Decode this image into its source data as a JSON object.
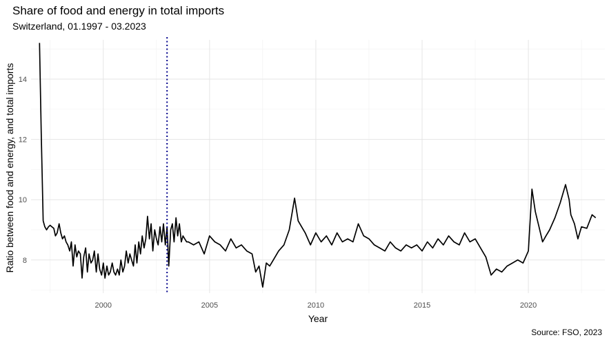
{
  "chart_data": {
    "type": "line",
    "title": "Share of food and energy in total imports",
    "subtitle": "Switzerland, 01.1997 - 03.2023",
    "caption": "Source: FSO, 2023",
    "xlabel": "Year",
    "ylabel": "Ratio between food and energy, and total imports",
    "xlim": [
      1996.6,
      2023.6
    ],
    "ylim": [
      6.9,
      15.3
    ],
    "x_ticks": [
      2000,
      2005,
      2010,
      2015,
      2020
    ],
    "y_ticks": [
      8,
      10,
      12,
      14
    ],
    "grid": true,
    "vline": {
      "x": 2003.0,
      "style": "dotted",
      "color": "#00008b"
    },
    "line_color": "#000000",
    "series": [
      {
        "x": [
          1997.0,
          1997.08,
          1997.17,
          1997.25,
          1997.33,
          1997.42,
          1997.5,
          1997.58,
          1997.67,
          1997.75,
          1997.83,
          1997.92,
          1998.0,
          1998.08,
          1998.17,
          1998.25,
          1998.33,
          1998.42,
          1998.5,
          1998.58,
          1998.67,
          1998.75,
          1998.83,
          1998.92,
          1999.0,
          1999.08,
          1999.17,
          1999.25,
          1999.33,
          1999.42,
          1999.5,
          1999.58,
          1999.67,
          1999.75,
          1999.83,
          1999.92,
          2000.0,
          2000.08,
          2000.17,
          2000.25,
          2000.33,
          2000.42,
          2000.5,
          2000.58,
          2000.67,
          2000.75,
          2000.83,
          2000.92,
          2001.0,
          2001.08,
          2001.17,
          2001.25,
          2001.33,
          2001.42,
          2001.5,
          2001.58,
          2001.67,
          2001.75,
          2001.83,
          2001.92,
          2002.0,
          2002.08,
          2002.17,
          2002.25,
          2002.33,
          2002.42,
          2002.5,
          2002.58,
          2002.67,
          2002.75,
          2002.83,
          2002.92,
          2003.0,
          2003.08,
          2003.17,
          2003.25,
          2003.33,
          2003.42,
          2003.5,
          2003.58,
          2003.67,
          2003.75,
          2003.83,
          2003.92,
          2004.0,
          2004.25,
          2004.5,
          2004.75,
          2005.0,
          2005.25,
          2005.5,
          2005.75,
          2006.0,
          2006.25,
          2006.5,
          2006.75,
          2007.0,
          2007.17,
          2007.33,
          2007.5,
          2007.67,
          2007.83,
          2008.0,
          2008.25,
          2008.5,
          2008.75,
          2009.0,
          2009.17,
          2009.33,
          2009.5,
          2009.75,
          2010.0,
          2010.25,
          2010.5,
          2010.75,
          2011.0,
          2011.25,
          2011.5,
          2011.75,
          2012.0,
          2012.25,
          2012.5,
          2012.75,
          2013.0,
          2013.25,
          2013.5,
          2013.75,
          2014.0,
          2014.25,
          2014.5,
          2014.75,
          2015.0,
          2015.25,
          2015.5,
          2015.75,
          2016.0,
          2016.25,
          2016.5,
          2016.75,
          2017.0,
          2017.25,
          2017.5,
          2017.75,
          2018.0,
          2018.25,
          2018.5,
          2018.75,
          2019.0,
          2019.25,
          2019.5,
          2019.75,
          2020.0,
          2020.17,
          2020.33,
          2020.5,
          2020.67,
          2020.83,
          2021.0,
          2021.25,
          2021.5,
          2021.75,
          2021.92,
          2022.0,
          2022.17,
          2022.33,
          2022.5,
          2022.75,
          2023.0,
          2023.17
        ],
        "y": [
          15.2,
          12.2,
          9.3,
          9.1,
          9.0,
          9.1,
          9.15,
          9.1,
          9.05,
          8.8,
          8.9,
          9.2,
          8.9,
          8.7,
          8.8,
          8.6,
          8.5,
          8.3,
          8.6,
          7.8,
          8.5,
          8.1,
          8.3,
          8.2,
          7.4,
          8.1,
          8.4,
          7.6,
          8.2,
          7.9,
          8.0,
          8.3,
          7.6,
          8.2,
          7.7,
          7.5,
          7.9,
          7.4,
          7.8,
          7.5,
          7.6,
          7.9,
          7.6,
          7.5,
          7.7,
          7.5,
          8.0,
          7.6,
          7.8,
          8.3,
          7.9,
          8.2,
          8.0,
          7.8,
          8.5,
          7.9,
          8.6,
          8.2,
          8.8,
          8.4,
          8.7,
          9.45,
          8.7,
          9.2,
          8.3,
          9.0,
          8.7,
          8.5,
          9.1,
          8.6,
          9.2,
          8.5,
          9.1,
          7.8,
          9.0,
          9.2,
          8.6,
          9.4,
          8.8,
          9.2,
          8.6,
          8.8,
          8.7,
          8.6,
          8.6,
          8.5,
          8.6,
          8.2,
          8.8,
          8.6,
          8.5,
          8.3,
          8.7,
          8.4,
          8.5,
          8.3,
          8.2,
          7.6,
          7.8,
          7.1,
          7.9,
          7.8,
          8.0,
          8.3,
          8.5,
          9.0,
          10.05,
          9.3,
          9.1,
          8.9,
          8.5,
          8.9,
          8.6,
          8.8,
          8.5,
          8.9,
          8.6,
          8.7,
          8.6,
          9.2,
          8.8,
          8.7,
          8.5,
          8.4,
          8.3,
          8.6,
          8.4,
          8.3,
          8.5,
          8.4,
          8.5,
          8.3,
          8.6,
          8.4,
          8.7,
          8.5,
          8.8,
          8.6,
          8.5,
          8.9,
          8.6,
          8.7,
          8.4,
          8.1,
          7.5,
          7.7,
          7.6,
          7.8,
          7.9,
          8.0,
          7.9,
          8.3,
          10.35,
          9.6,
          9.1,
          8.6,
          8.8,
          9.0,
          9.4,
          9.9,
          10.5,
          10.0,
          9.5,
          9.2,
          8.7,
          9.1,
          9.05,
          9.5,
          9.4
        ]
      }
    ]
  }
}
